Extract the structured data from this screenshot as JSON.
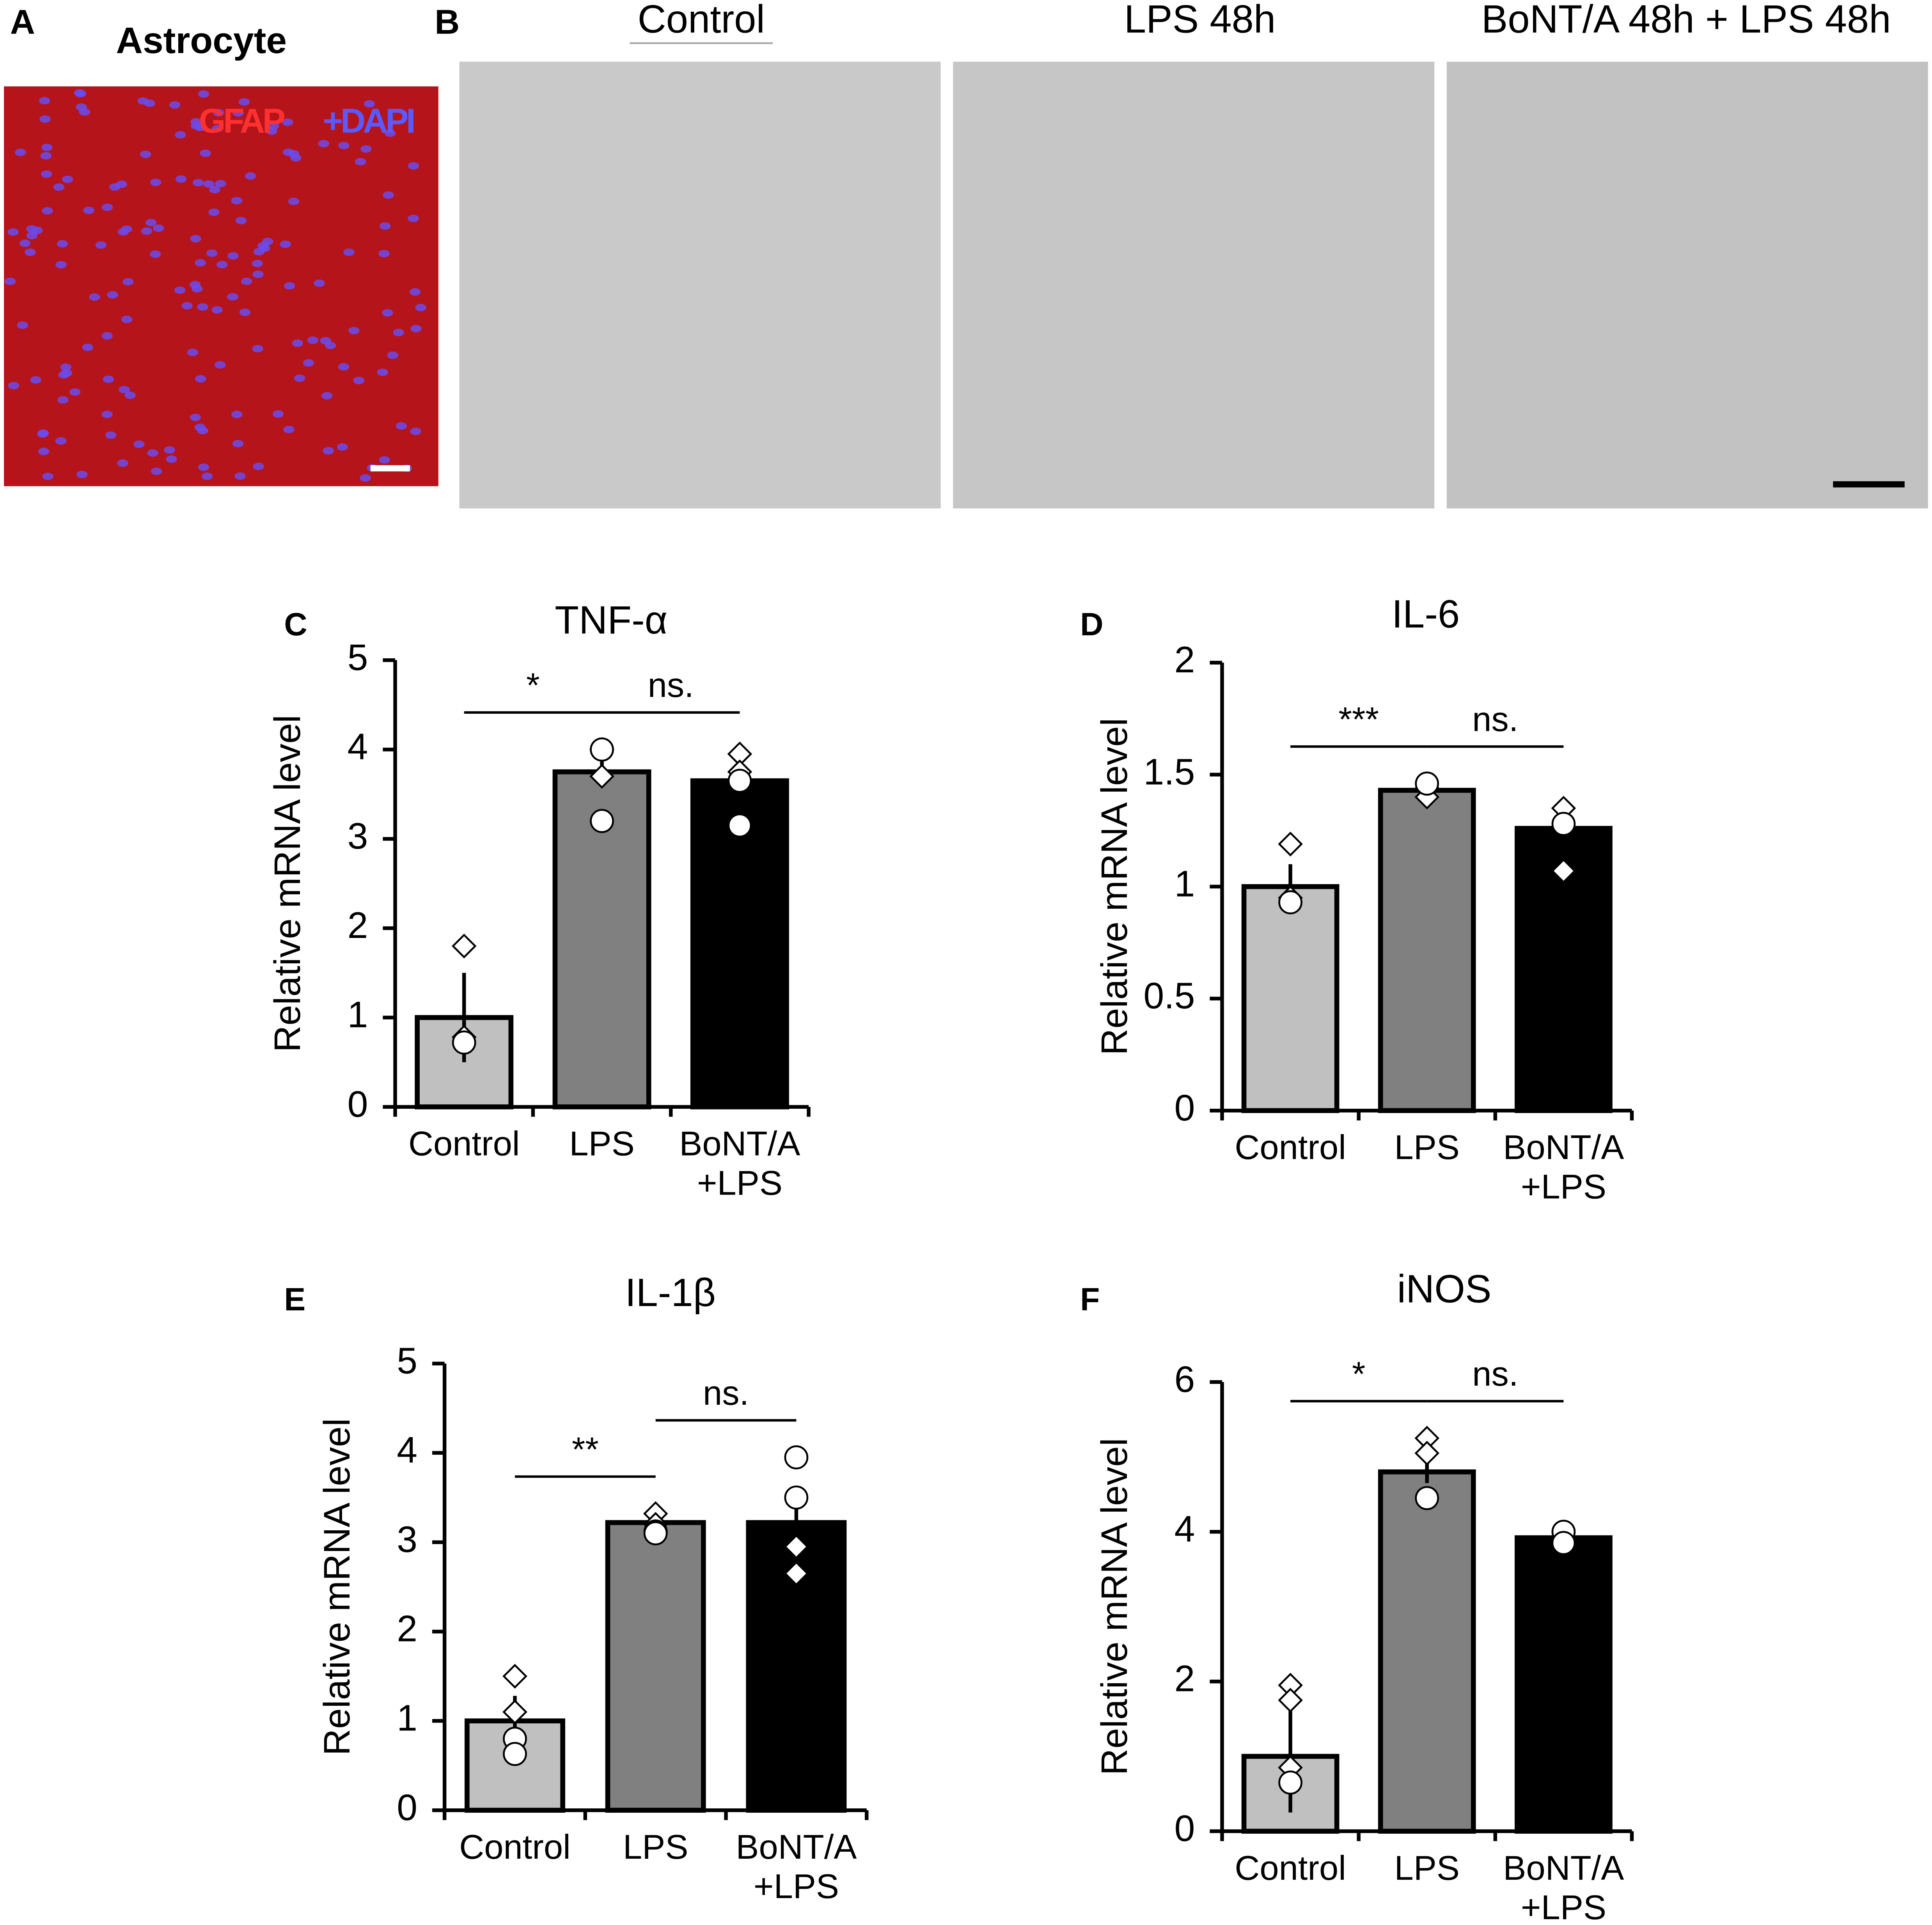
{
  "panels": {
    "a": {
      "letter": "A",
      "title": "Astrocyte",
      "stain1": "GFAP",
      "stain2": "+DAPI"
    },
    "b": {
      "letter": "B",
      "conditions": [
        "Control",
        "LPS 48h",
        "BoNT/A 48h + LPS 48h"
      ]
    }
  },
  "chart_data": [
    {
      "type": "bar",
      "panel": "C",
      "title": "TNF-α",
      "ylabel": "Relative mRNA  level",
      "categories": [
        "Control",
        "LPS",
        "BoNT/A +LPS"
      ],
      "colors": [
        "#c0c0c0",
        "#808080",
        "#000000"
      ],
      "values": [
        1.0,
        3.75,
        3.65
      ],
      "errors": [
        0.5,
        0.12,
        0.08
      ],
      "diamonds": [
        [
          1.8,
          0.78
        ],
        [
          4.0,
          3.7
        ],
        [
          3.95,
          3.75
        ]
      ],
      "circles": [
        [
          0.72
        ],
        [
          4.0,
          3.2
        ],
        [
          3.65,
          3.15
        ]
      ],
      "annotations": [
        "*",
        "ns."
      ],
      "ylim": [
        0,
        5
      ],
      "yticks": [
        0,
        1,
        2,
        3,
        4,
        5
      ]
    },
    {
      "type": "bar",
      "panel": "D",
      "title": "IL-6",
      "ylabel": "Relative mRNA  level",
      "categories": [
        "Control",
        "LPS",
        "BoNT/A +LPS"
      ],
      "colors": [
        "#c0c0c0",
        "#808080",
        "#000000"
      ],
      "values": [
        1.0,
        1.43,
        1.26
      ],
      "errors": [
        0.1,
        0.03,
        0.05
      ],
      "diamonds": [
        [
          1.19,
          0.95
        ],
        [
          1.44,
          1.4
        ],
        [
          1.35,
          1.07
        ]
      ],
      "circles": [
        [
          0.93
        ],
        [
          1.46
        ],
        [
          1.28
        ]
      ],
      "annotations": [
        "***",
        "ns."
      ],
      "ylim": [
        0,
        2
      ],
      "yticks": [
        0,
        0.5,
        1,
        1.5,
        2
      ]
    },
    {
      "type": "bar",
      "panel": "E",
      "title": "IL-1β",
      "ylabel": "Relative mRNA  level",
      "categories": [
        "Control",
        "LPS",
        "BoNT/A +LPS"
      ],
      "colors": [
        "#c0c0c0",
        "#808080",
        "#000000"
      ],
      "values": [
        1.0,
        3.22,
        3.22
      ],
      "errors": [
        0.28,
        0.08,
        0.22
      ],
      "diamonds": [
        [
          1.5,
          1.1
        ],
        [
          3.32,
          3.2
        ],
        [
          2.95,
          2.65
        ]
      ],
      "circles": [
        [
          0.8,
          0.63
        ],
        [
          3.12,
          3.1
        ],
        [
          3.95,
          3.5
        ]
      ],
      "annotations": [
        "**",
        "ns."
      ],
      "ylim": [
        0,
        5
      ],
      "yticks": [
        0,
        1,
        2,
        3,
        4,
        5
      ]
    },
    {
      "type": "bar",
      "panel": "F",
      "title": "iNOS",
      "ylabel": "Relative mRNA  level",
      "categories": [
        "Control",
        "LPS",
        "BoNT/A +LPS"
      ],
      "colors": [
        "#c0c0c0",
        "#808080",
        "#000000"
      ],
      "values": [
        1.0,
        4.8,
        3.92
      ],
      "errors": [
        0.75,
        0.15,
        0.1
      ],
      "diamonds": [
        [
          1.95,
          1.75,
          0.85
        ],
        [
          5.25,
          5.05
        ],
        []
      ],
      "circles": [
        [
          0.65
        ],
        [
          4.45
        ],
        [
          4.0,
          3.85
        ]
      ],
      "annotations": [
        "*",
        "ns."
      ],
      "ylim": [
        0,
        6
      ],
      "yticks": [
        0,
        2,
        4,
        6
      ]
    }
  ]
}
